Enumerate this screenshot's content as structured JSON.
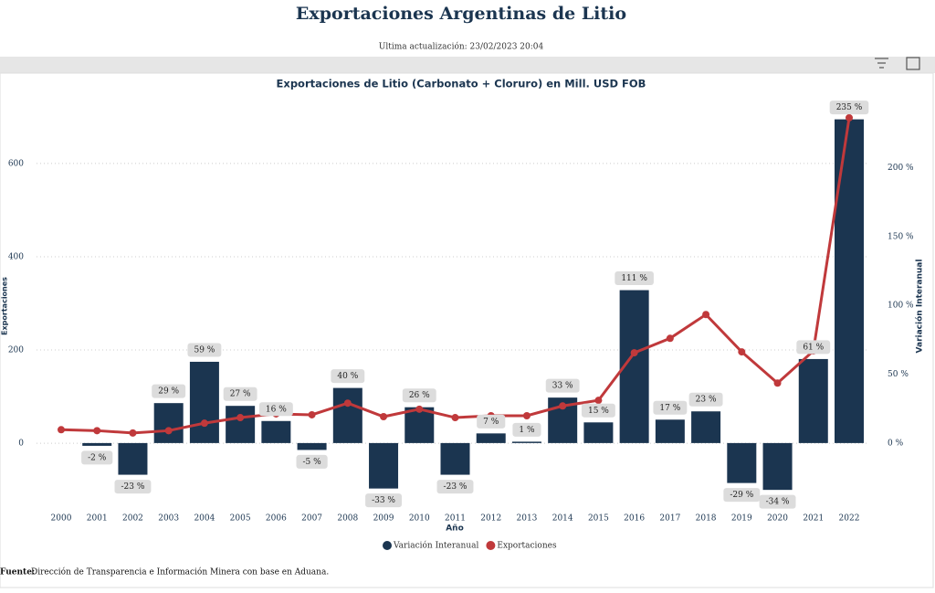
{
  "header": {
    "title": "Exportaciones Argentinas de Litio",
    "subtitle": "Ultima actualización: 23/02/2023 20:04"
  },
  "source": {
    "label": "Fuente:",
    "text": "Dirección de Transparencia e Información Minera con base en Aduana."
  },
  "chart_data": {
    "type": "combo",
    "title": "Exportaciones de Litio (Carbonato + Cloruro) en Mill. USD FOB",
    "x_label": "Año",
    "y_label": "Exportaciones",
    "y2_label": "Variación Interanual",
    "categories": [
      "2000",
      "2001",
      "2002",
      "2003",
      "2004",
      "2005",
      "2006",
      "2007",
      "2008",
      "2009",
      "2010",
      "2011",
      "2012",
      "2013",
      "2014",
      "2015",
      "2016",
      "2017",
      "2018",
      "2019",
      "2020",
      "2021",
      "2022"
    ],
    "series": [
      {
        "name": "Variación Interanual",
        "type": "bar",
        "axis": "y2",
        "color": "#1b3550",
        "values": [
          null,
          -2,
          -23,
          29,
          59,
          27,
          16,
          -5,
          40,
          -33,
          26,
          -23,
          7,
          1,
          33,
          15,
          111,
          17,
          23,
          -29,
          -34,
          61,
          235
        ],
        "value_labels": [
          null,
          "-2 %",
          "-23 %",
          "29 %",
          "59 %",
          "27 %",
          "16 %",
          "-5 %",
          "40 %",
          "-33 %",
          "26 %",
          "-23 %",
          "7 %",
          "1 %",
          "33 %",
          "15 %",
          "111 %",
          "17 %",
          "23 %",
          "-29 %",
          "-34 %",
          "61 %",
          "235 %"
        ]
      },
      {
        "name": "Exportaciones",
        "type": "line",
        "axis": "y",
        "color": "#c0393b",
        "values": [
          29,
          27,
          22,
          27,
          43,
          55,
          63,
          61,
          86,
          57,
          73,
          55,
          59,
          59,
          80,
          92,
          194,
          225,
          276,
          196,
          129,
          198,
          698
        ]
      }
    ],
    "ylim": [
      -137,
      739
    ],
    "yticks": [
      0,
      200,
      400,
      600
    ],
    "y2lim": [
      -46.5,
      250
    ],
    "y2ticks": [
      {
        "value": 0,
        "label": "0 %"
      },
      {
        "value": 50,
        "label": "50 %"
      },
      {
        "value": 100,
        "label": "100 %"
      },
      {
        "value": 150,
        "label": "150 %"
      },
      {
        "value": 200,
        "label": "200 %"
      }
    ],
    "grid": true,
    "legend": "bottom"
  }
}
